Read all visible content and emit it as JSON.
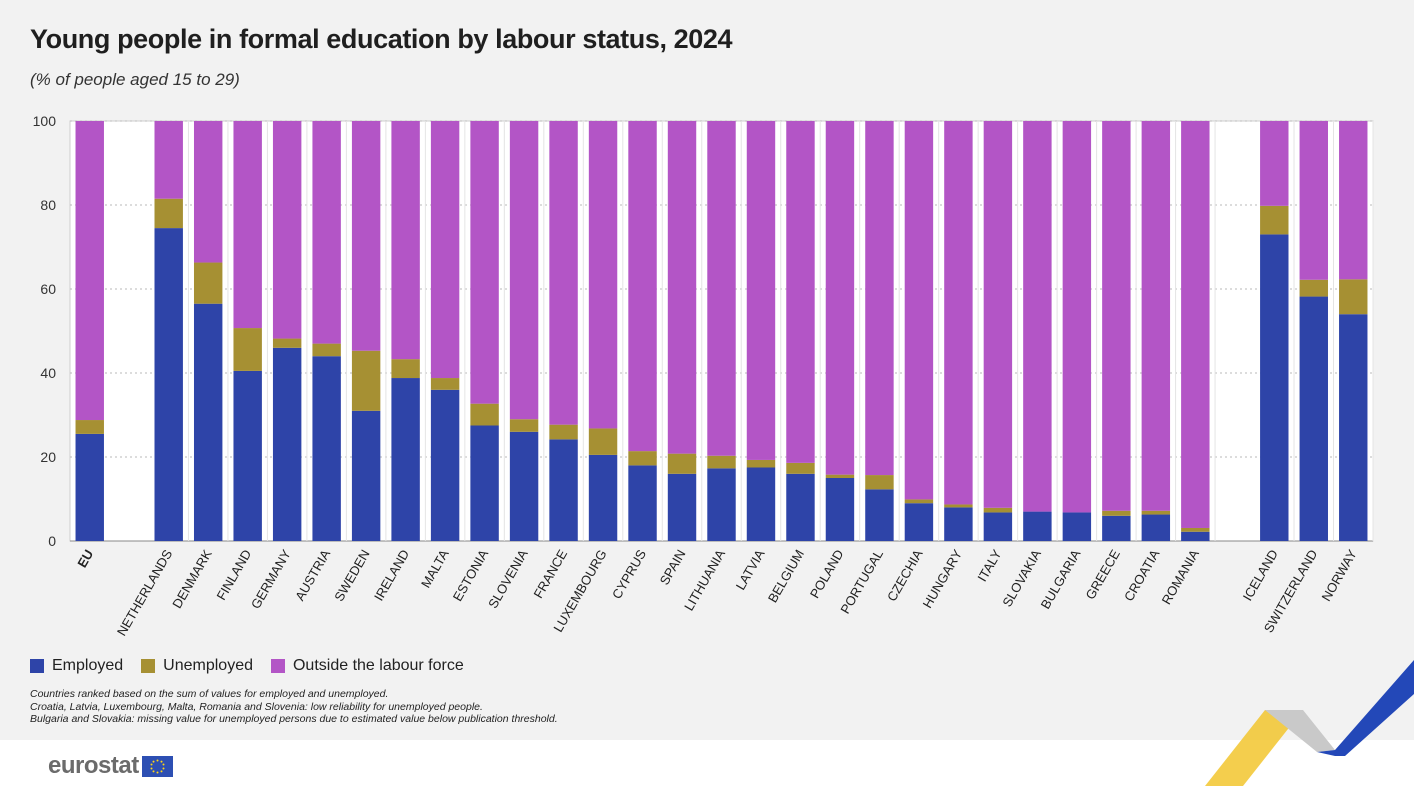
{
  "header": {
    "title": "Young people in formal education by labour status, 2024",
    "subtitle": "(% of people aged 15 to 29)"
  },
  "legend": [
    {
      "label": "Employed",
      "color": "#2e44a8"
    },
    {
      "label": "Unemployed",
      "color": "#a69033"
    },
    {
      "label": "Outside the labour force",
      "color": "#b355c6"
    }
  ],
  "notes": [
    "Countries ranked based on the sum of values for employed and unemployed.",
    "Croatia, Latvia, Luxembourg, Malta, Romania and Slovenia: low reliability for unemployed people.",
    "Bulgaria and Slovakia: missing value for unemployed persons due to estimated value below publication threshold."
  ],
  "logo": {
    "text": "eurostat",
    "icon": "eu-flag-icon"
  },
  "chart_data": {
    "type": "bar",
    "stacked": true,
    "groups": [
      [
        "EU"
      ],
      [
        "NETHERLANDS",
        "DENMARK",
        "FINLAND",
        "GERMANY",
        "AUSTRIA",
        "SWEDEN",
        "IRELAND",
        "MALTA",
        "ESTONIA",
        "SLOVENIA",
        "FRANCE",
        "LUXEMBOURG",
        "CYPRUS",
        "SPAIN",
        "LITHUANIA",
        "LATVIA",
        "BELGIUM",
        "POLAND",
        "PORTUGAL",
        "CZECHIA",
        "HUNGARY",
        "ITALY",
        "SLOVAKIA",
        "BULGARIA",
        "GREECE",
        "CROATIA",
        "ROMANIA"
      ],
      [
        "ICELAND",
        "SWITZERLAND",
        "NORWAY"
      ]
    ],
    "categories": [
      "EU",
      "NETHERLANDS",
      "DENMARK",
      "FINLAND",
      "GERMANY",
      "AUSTRIA",
      "SWEDEN",
      "IRELAND",
      "MALTA",
      "ESTONIA",
      "SLOVENIA",
      "FRANCE",
      "LUXEMBOURG",
      "CYPRUS",
      "SPAIN",
      "LITHUANIA",
      "LATVIA",
      "BELGIUM",
      "POLAND",
      "PORTUGAL",
      "CZECHIA",
      "HUNGARY",
      "ITALY",
      "SLOVAKIA",
      "BULGARIA",
      "GREECE",
      "CROATIA",
      "ROMANIA",
      "ICELAND",
      "SWITZERLAND",
      "NORWAY"
    ],
    "series": [
      {
        "name": "Employed",
        "color": "#2e44a8",
        "values": [
          25.5,
          74.5,
          56.5,
          40.5,
          46,
          44,
          31,
          38.8,
          36,
          27.5,
          26,
          24.2,
          20.5,
          18,
          16,
          17.3,
          17.5,
          16,
          15,
          12.3,
          9,
          8,
          6.8,
          7,
          6.8,
          6,
          6.3,
          2.2,
          73,
          58.2,
          54
        ]
      },
      {
        "name": "Unemployed",
        "color": "#a69033",
        "values": [
          3.3,
          7,
          9.8,
          10.2,
          2.2,
          3,
          14.3,
          4.5,
          2.8,
          5.2,
          3,
          3.5,
          6.3,
          3.4,
          4.8,
          3,
          1.8,
          2.6,
          0.8,
          3.4,
          0.9,
          0.7,
          1.1,
          null,
          null,
          1.2,
          0.9,
          0.9,
          6.8,
          4,
          8.3
        ]
      },
      {
        "name": "Outside the labour force",
        "color": "#b355c6",
        "values": [
          71.2,
          18.5,
          33.7,
          49.3,
          51.8,
          53,
          54.7,
          56.7,
          61.2,
          67.3,
          71,
          72.3,
          73.2,
          78.6,
          79.2,
          79.7,
          80.7,
          81.4,
          84.2,
          84.3,
          90.1,
          91.3,
          92.1,
          93,
          93.2,
          92.8,
          92.8,
          96.9,
          20.2,
          37.8,
          37.7
        ]
      }
    ],
    "ylim": [
      0,
      100
    ],
    "yticks": [
      0,
      20,
      40,
      60,
      80,
      100
    ],
    "xlabel": "",
    "ylabel": "",
    "grid": true,
    "legend_position": "bottom-left"
  }
}
